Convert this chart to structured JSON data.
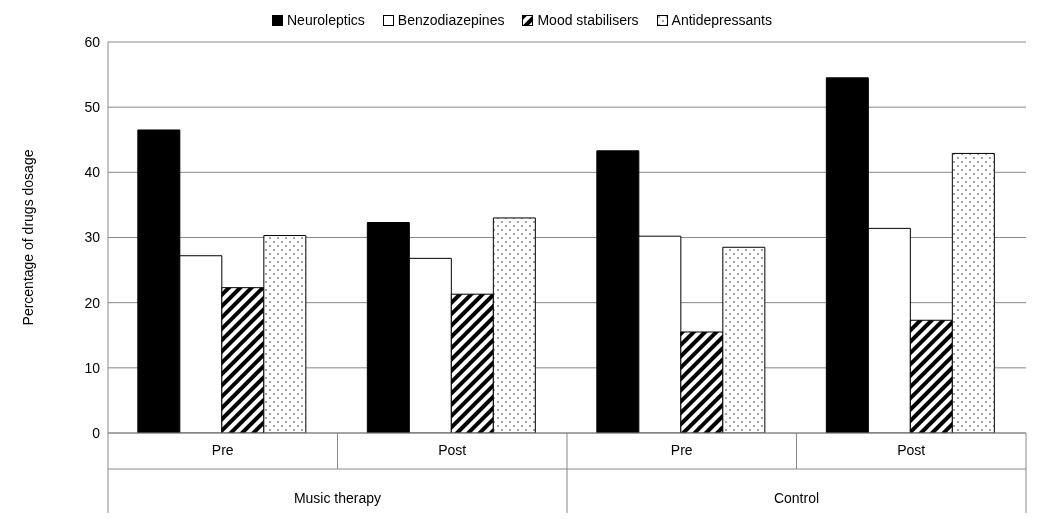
{
  "chart_data": {
    "type": "bar",
    "ylabel": "Percentage of drugs dosage",
    "categories": [
      "Pre",
      "Post",
      "Pre",
      "Post"
    ],
    "annotations": [
      "Music therapy",
      "Control"
    ],
    "series": [
      {
        "name": "Neuroleptics",
        "color": "#000000",
        "values": [
          46.5,
          32.3,
          43.3,
          54.5
        ]
      },
      {
        "name": "Benzodiazepines",
        "color": "#ffffff",
        "values": [
          27.2,
          26.8,
          30.2,
          31.4
        ]
      },
      {
        "name": "Mood stabilisers",
        "color": "#000000",
        "values": [
          22.3,
          21.3,
          15.5,
          17.3
        ]
      },
      {
        "name": "Antidepressants",
        "color": "#000000",
        "values": [
          30.3,
          33,
          28.5,
          42.9
        ]
      }
    ],
    "ylim": [
      0,
      60
    ],
    "yticks": [
      0,
      10,
      20,
      30,
      40,
      50,
      60
    ],
    "grid": "y",
    "legend": "top"
  }
}
